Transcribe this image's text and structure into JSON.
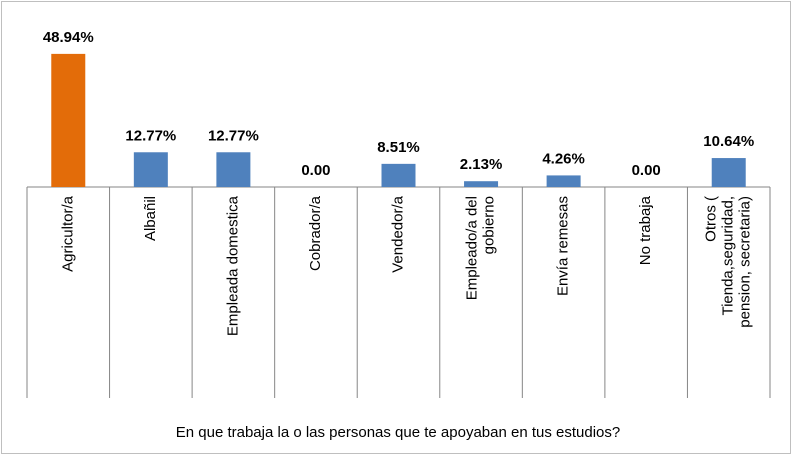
{
  "chart_data": {
    "type": "bar",
    "x_label": "En que trabaja la o las personas que te apoyaban en tus estudios?",
    "categories": [
      "Agricultor/a",
      "Albañil",
      "Empleada domestica",
      "Cobrador/a",
      "Vendedor/a",
      "Empleado/a del\ngobierno",
      "Envía remesas",
      "No trabaja",
      "Otros (\nTienda,seguridad,\npension, secretaria)"
    ],
    "values": [
      48.94,
      12.77,
      12.77,
      0,
      8.51,
      2.13,
      4.26,
      0,
      10.64
    ],
    "value_labels": [
      "48.94%",
      "12.77%",
      "12.77%",
      "0.00",
      "8.51%",
      "2.13%",
      "4.26%",
      "0.00",
      "10.64%"
    ],
    "colors": [
      "#e36c09",
      "#4f81bd",
      "#4f81bd",
      "#4f81bd",
      "#4f81bd",
      "#4f81bd",
      "#4f81bd",
      "#4f81bd",
      "#4f81bd"
    ]
  }
}
